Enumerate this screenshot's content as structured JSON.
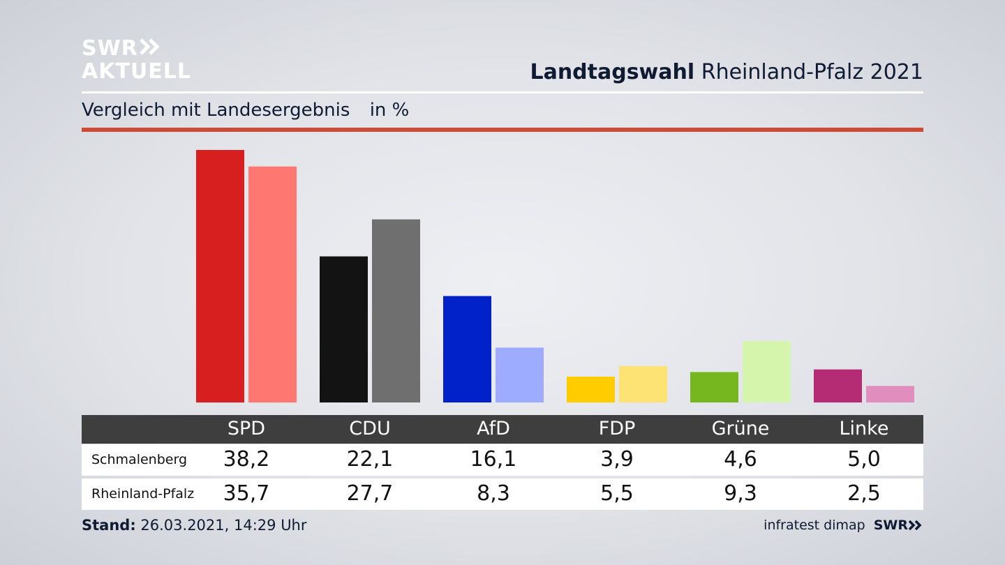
{
  "logo": {
    "line1": "SWR",
    "line2": "AKTUELL"
  },
  "header": {
    "title_bold": "Landtagswahl",
    "title_rest": "Rheinland-Pfalz 2021"
  },
  "subtitle": {
    "text": "Vergleich mit Landesergebnis",
    "unit": "in %"
  },
  "footer": {
    "stand_label": "Stand:",
    "stand_value": "26.03.2021, 14:29 Uhr",
    "source": "infratest dimap",
    "brand": "SWR"
  },
  "chart_data": {
    "type": "bar",
    "categories": [
      "SPD",
      "CDU",
      "AfD",
      "FDP",
      "Grüne",
      "Linke"
    ],
    "series": [
      {
        "name": "Schmalenberg",
        "values": [
          38.2,
          22.1,
          16.1,
          3.9,
          4.6,
          5.0
        ],
        "display": [
          "38,2",
          "22,1",
          "16,1",
          "3,9",
          "4,6",
          "5,0"
        ]
      },
      {
        "name": "Rheinland-Pfalz",
        "values": [
          35.7,
          27.7,
          8.3,
          5.5,
          9.3,
          2.5
        ],
        "display": [
          "35,7",
          "27,7",
          "8,3",
          "5,5",
          "9,3",
          "2,5"
        ]
      }
    ],
    "colors": {
      "Schmalenberg": [
        "#d71f1f",
        "#131313",
        "#0022c8",
        "#ffcc00",
        "#76b61f",
        "#b62c74"
      ],
      "Rheinland-Pfalz": [
        "#ff7771",
        "#706f6f",
        "#9eacff",
        "#fde274",
        "#d4f5ab",
        "#e18dbd"
      ]
    },
    "ylim": [
      0,
      38.2
    ]
  }
}
